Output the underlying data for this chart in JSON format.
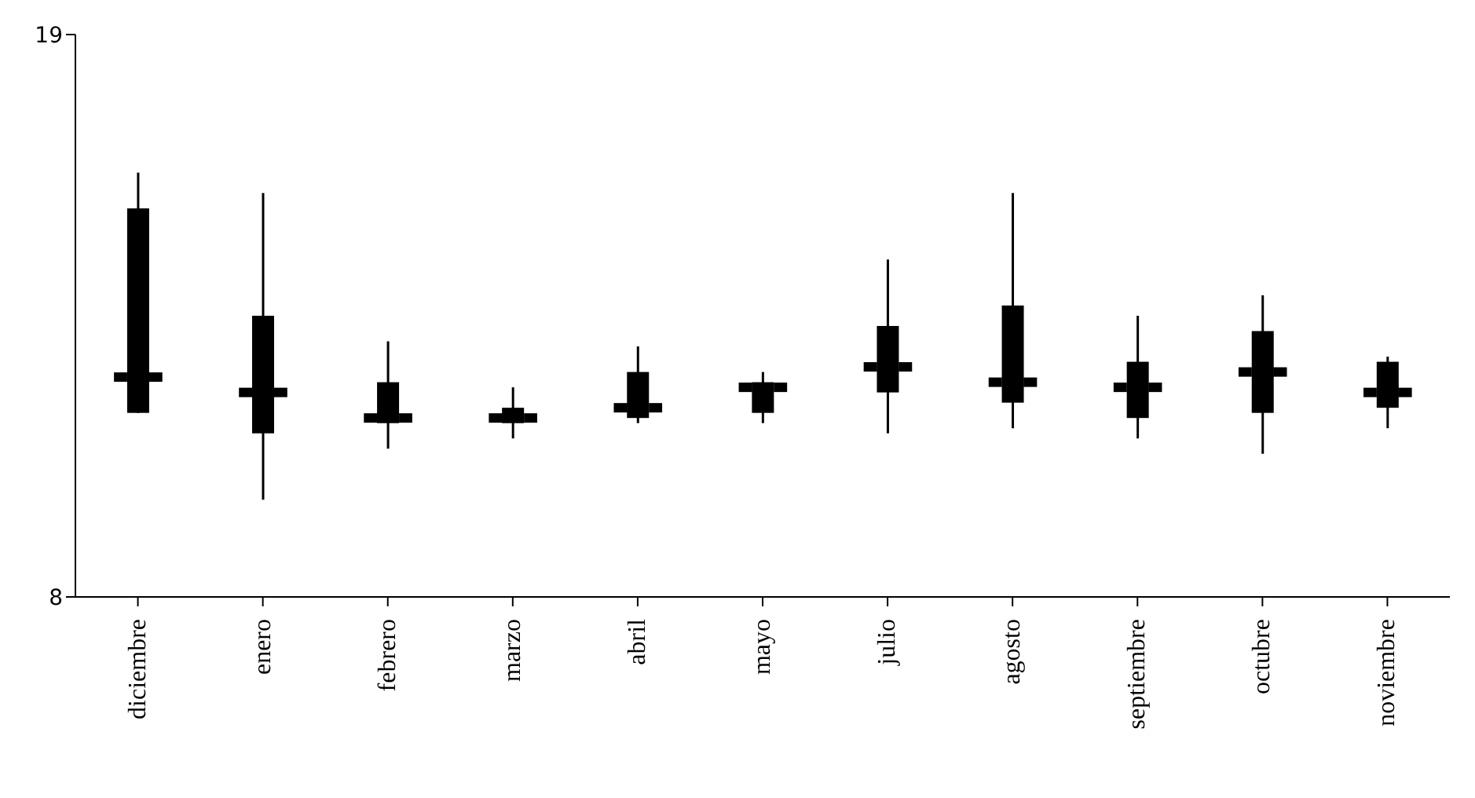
{
  "chart_data": {
    "type": "box",
    "color": "#000000",
    "categories": [
      "diciembre",
      "enero",
      "febrero",
      "marzo",
      "abril",
      "mayo",
      "julio",
      "agosto",
      "septiembre",
      "octubre",
      "noviembre"
    ],
    "boxes": [
      {
        "low": 11.6,
        "q1": 11.6,
        "median": 12.3,
        "q3": 15.6,
        "high": 16.3
      },
      {
        "low": 9.9,
        "q1": 11.2,
        "median": 12.0,
        "q3": 13.5,
        "high": 15.9
      },
      {
        "low": 10.9,
        "q1": 11.4,
        "median": 11.5,
        "q3": 12.2,
        "high": 13.0
      },
      {
        "low": 11.1,
        "q1": 11.4,
        "median": 11.5,
        "q3": 11.7,
        "high": 12.1
      },
      {
        "low": 11.4,
        "q1": 11.5,
        "median": 11.7,
        "q3": 12.4,
        "high": 12.9
      },
      {
        "low": 11.4,
        "q1": 11.6,
        "median": 12.1,
        "q3": 12.2,
        "high": 12.4
      },
      {
        "low": 11.2,
        "q1": 12.0,
        "median": 12.5,
        "q3": 13.3,
        "high": 14.6
      },
      {
        "low": 11.3,
        "q1": 11.8,
        "median": 12.2,
        "q3": 13.7,
        "high": 15.9
      },
      {
        "low": 11.1,
        "q1": 11.5,
        "median": 12.1,
        "q3": 12.6,
        "high": 13.5
      },
      {
        "low": 10.8,
        "q1": 11.6,
        "median": 12.4,
        "q3": 13.2,
        "high": 13.9
      },
      {
        "low": 11.3,
        "q1": 11.7,
        "median": 12.0,
        "q3": 12.6,
        "high": 12.7
      }
    ],
    "ylim": [
      8,
      19
    ],
    "yticks": [
      8,
      19
    ],
    "grid": false
  }
}
